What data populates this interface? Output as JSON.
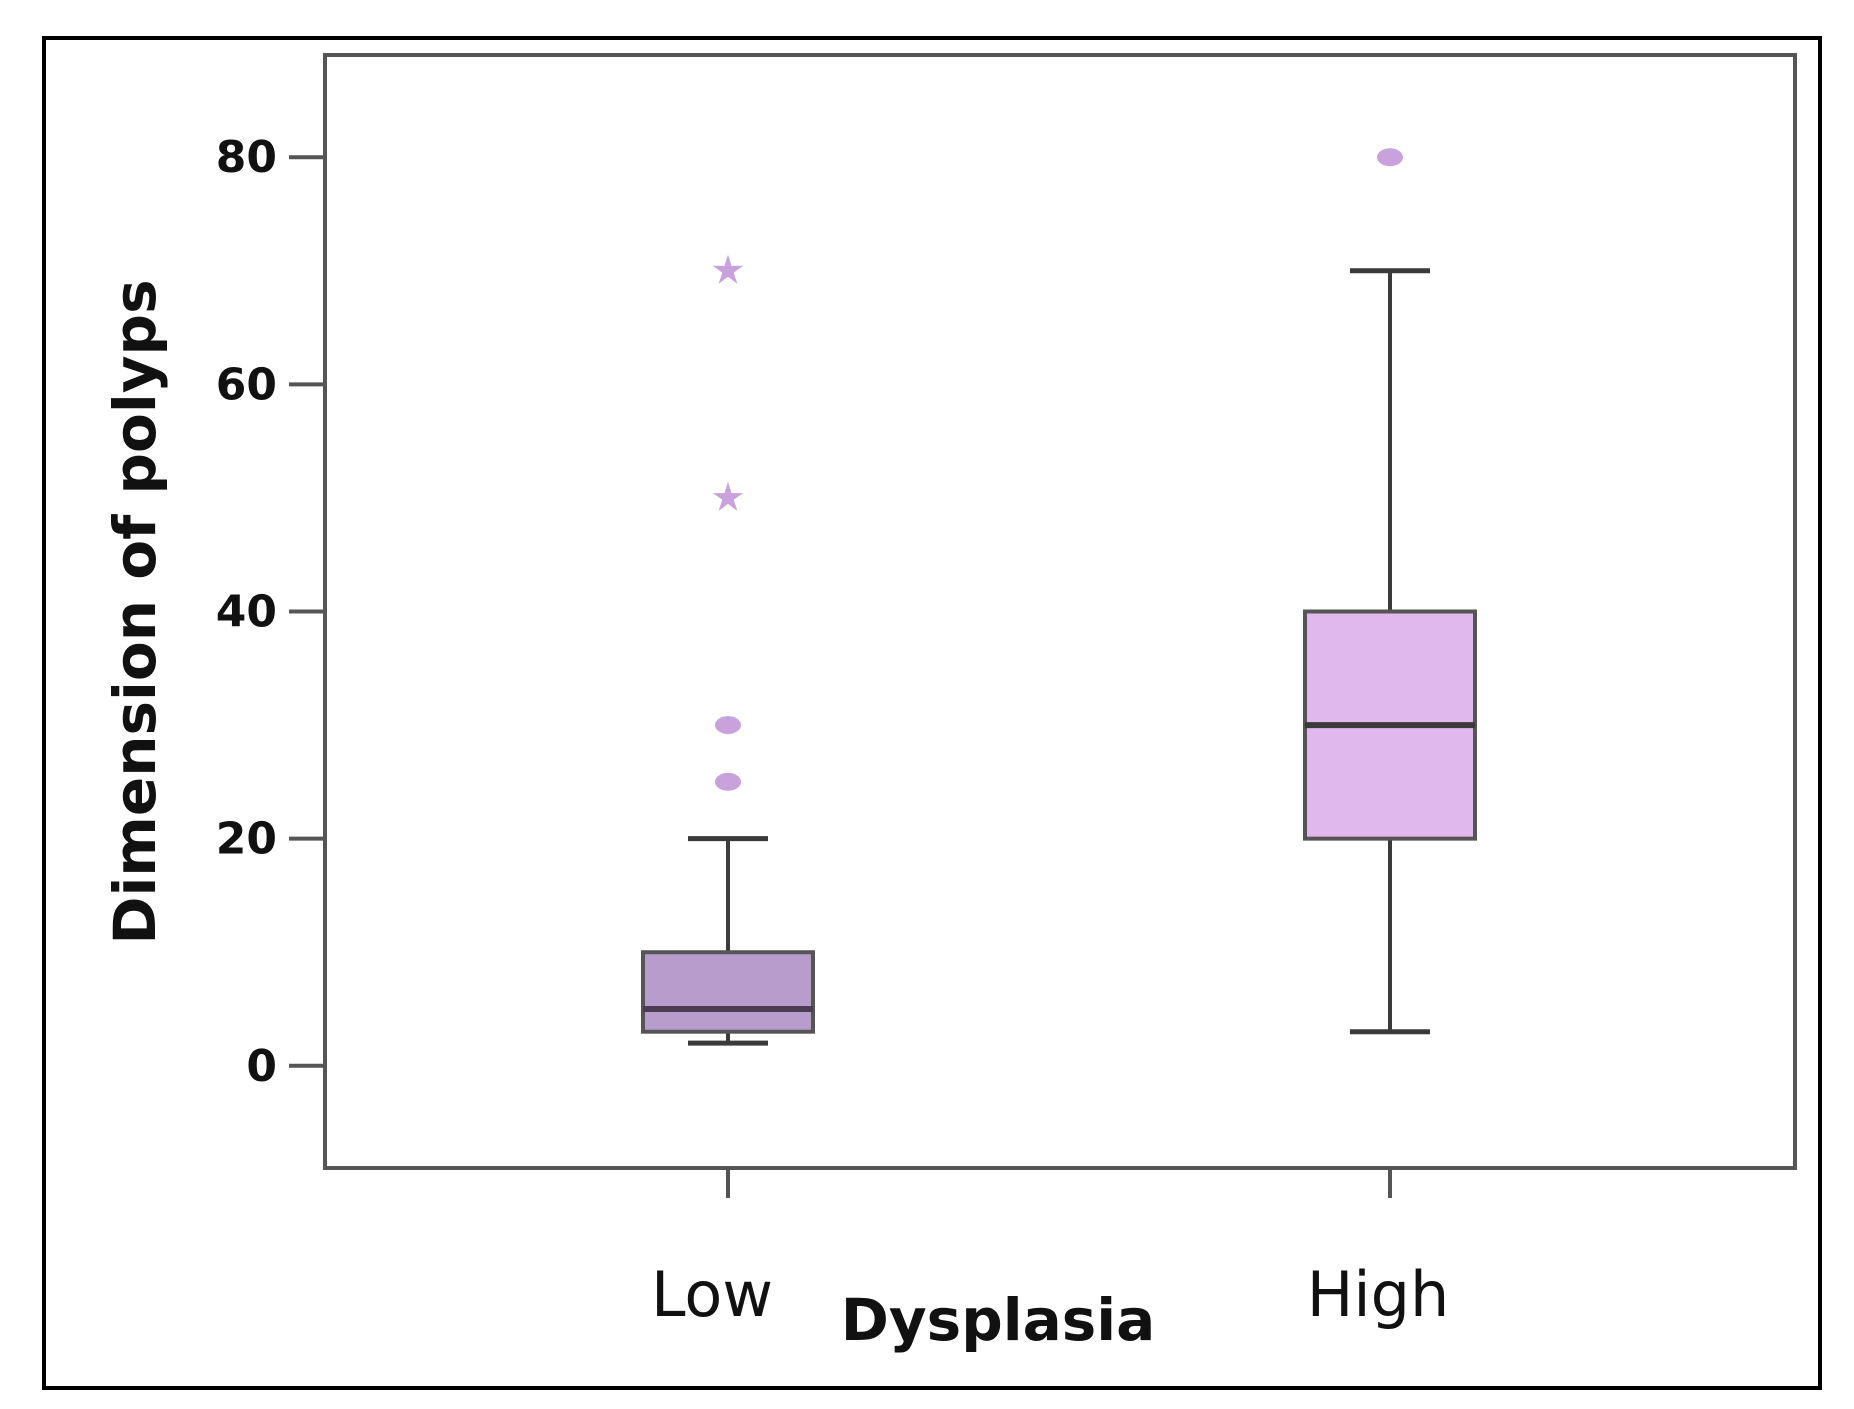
{
  "chart_data": {
    "type": "boxplot",
    "title": "",
    "xlabel": "Dysplasia",
    "ylabel": "Dimension of polyps",
    "ylim": [
      -9,
      89
    ],
    "yticks": [
      0,
      20,
      40,
      60,
      80
    ],
    "grid": false,
    "categories": [
      "Low",
      "High"
    ],
    "boxes": [
      {
        "name": "Low",
        "whisker_low": 2,
        "q1": 3,
        "median": 5,
        "q3": 10,
        "whisker_high": 20,
        "outliers": [
          25,
          30
        ],
        "extremes": [
          50,
          70
        ],
        "color": "#b89ccc",
        "median_color": "#4a3a52"
      },
      {
        "name": "High",
        "whisker_low": 3,
        "q1": 20,
        "median": 30,
        "q3": 40,
        "whisker_high": 70,
        "outliers": [
          80
        ],
        "extremes": [],
        "color": "#e0b8ee",
        "median_color": "#3a3a3a"
      }
    ],
    "outlier_color": "#c9a2dd",
    "line_color": "#3a3a3a"
  }
}
